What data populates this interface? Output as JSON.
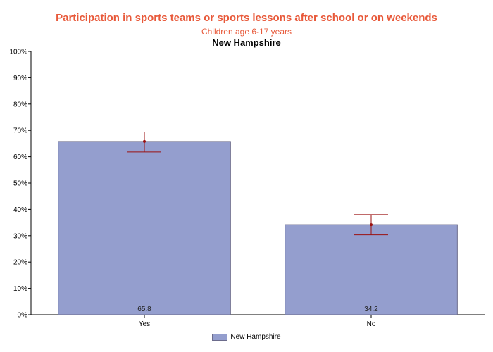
{
  "chart_data": {
    "type": "bar",
    "title": "Participation in sports teams or sports lessons after school or on weekends",
    "subtitle": "Children age 6-17 years",
    "subtitle2": "New Hampshire",
    "categories": [
      "Yes",
      "No"
    ],
    "series": [
      {
        "name": "New Hampshire",
        "values": [
          65.8,
          34.2
        ],
        "value_labels": [
          "65.8",
          "34.2"
        ],
        "ci_low": [
          61.8,
          30.3
        ],
        "ci_high": [
          69.4,
          38.0
        ]
      }
    ],
    "ylim": [
      0,
      100
    ],
    "yticks": [
      0,
      10,
      20,
      30,
      40,
      50,
      60,
      70,
      80,
      90,
      100
    ],
    "ytick_labels": [
      "0%",
      "10%",
      "20%",
      "30%",
      "40%",
      "50%",
      "60%",
      "70%",
      "80%",
      "90%",
      "100%"
    ],
    "grid": false,
    "legend_position": "bottom-center",
    "colors": {
      "bar": "#949ece",
      "bar_edge": "#6c6c8c",
      "error_bar": "#9b1111",
      "title": "#e8593a"
    }
  }
}
